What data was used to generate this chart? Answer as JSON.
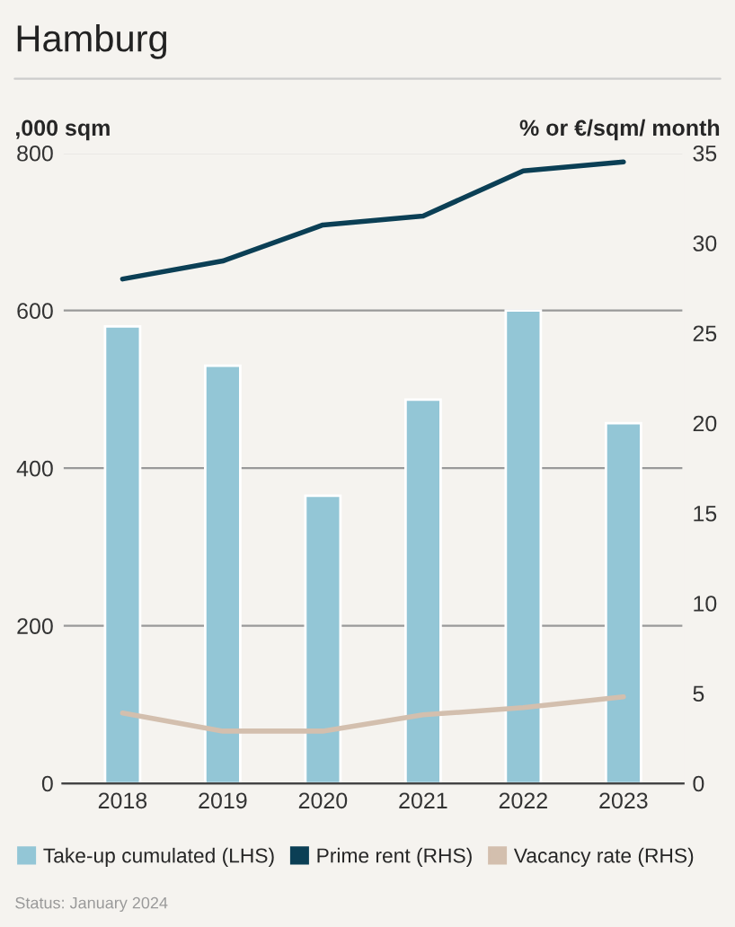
{
  "chart_data": {
    "type": "bar",
    "title": "Hamburg",
    "ylabel": ",000 sqm",
    "y2label": "% or €/sqm/ month",
    "categories": [
      "2018",
      "2019",
      "2020",
      "2021",
      "2022",
      "2023"
    ],
    "series": [
      {
        "name": "Take-up cumulated (LHS)",
        "color": "#93c6d6",
        "values": [
          580,
          530,
          365,
          487,
          600,
          457
        ]
      },
      {
        "name": "Prime rent (RHS)",
        "color": "#0b3f55",
        "type": "line",
        "axis": "y2",
        "values": [
          28.0,
          29.0,
          31.0,
          31.5,
          34.0,
          34.5
        ]
      },
      {
        "name": "Vacancy rate (RHS)",
        "color": "#d3bfae",
        "type": "line",
        "axis": "y2",
        "values": [
          3.9,
          2.9,
          2.9,
          3.8,
          4.2,
          4.8
        ]
      }
    ],
    "ylim": [
      0,
      800
    ],
    "yticks": [
      0,
      200,
      400,
      600,
      800
    ],
    "y2lim": [
      0,
      35
    ],
    "y2ticks": [
      0,
      5,
      10,
      15,
      20,
      25,
      30,
      35
    ],
    "grid": "y",
    "legend": "bottom",
    "annotations": [
      "Status: January 2024"
    ]
  }
}
